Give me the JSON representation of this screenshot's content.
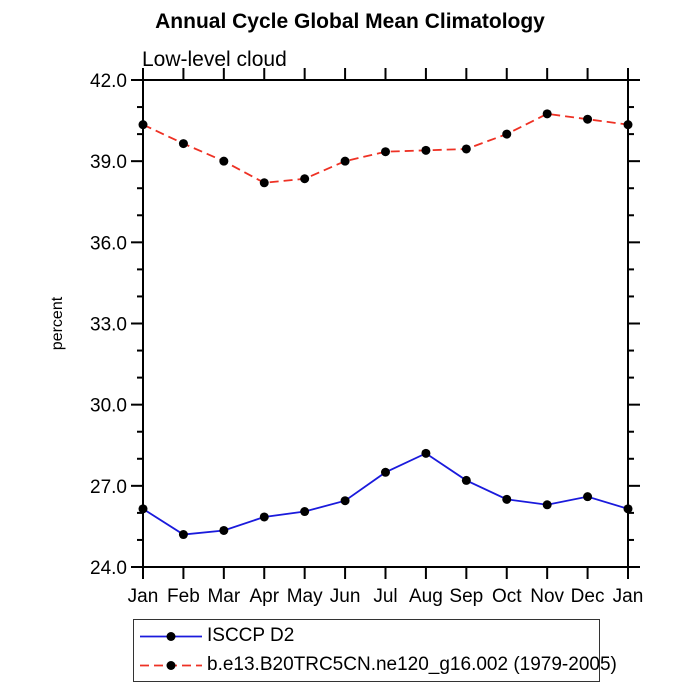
{
  "chart_data": {
    "type": "line",
    "title": "Annual Cycle Global Mean Climatology",
    "subtitle": "Low-level cloud",
    "xlabel": "",
    "ylabel": "percent",
    "categories": [
      "Jan",
      "Feb",
      "Mar",
      "Apr",
      "May",
      "Jun",
      "Jul",
      "Aug",
      "Sep",
      "Oct",
      "Nov",
      "Dec",
      "Jan"
    ],
    "ylim": [
      24.0,
      42.0
    ],
    "y_major_ticks": [
      24,
      27,
      30,
      33,
      36,
      39,
      42
    ],
    "y_major_tick_labels": [
      "24.0",
      "27.0",
      "30.0",
      "33.0",
      "36.0",
      "39.0",
      "42.0"
    ],
    "y_minor_step": 1.0,
    "grid": false,
    "legend_position": "bottom-left-box",
    "axis_color": "#000000",
    "marker_color": "#000000",
    "series": [
      {
        "name": "ISCCP D2",
        "color": "#1a1adc",
        "line_style": "solid",
        "values": [
          26.15,
          25.2,
          25.35,
          25.85,
          26.05,
          26.45,
          27.5,
          28.2,
          27.2,
          26.5,
          26.3,
          26.6,
          26.15
        ]
      },
      {
        "name": "b.e13.B20TRC5CN.ne120_g16.002 (1979-2005)",
        "color": "#ee3124",
        "line_style": "dashed",
        "values": [
          40.35,
          39.65,
          39.0,
          38.2,
          38.35,
          39.0,
          39.35,
          39.4,
          39.45,
          40.0,
          40.75,
          40.55,
          40.35
        ]
      }
    ]
  }
}
